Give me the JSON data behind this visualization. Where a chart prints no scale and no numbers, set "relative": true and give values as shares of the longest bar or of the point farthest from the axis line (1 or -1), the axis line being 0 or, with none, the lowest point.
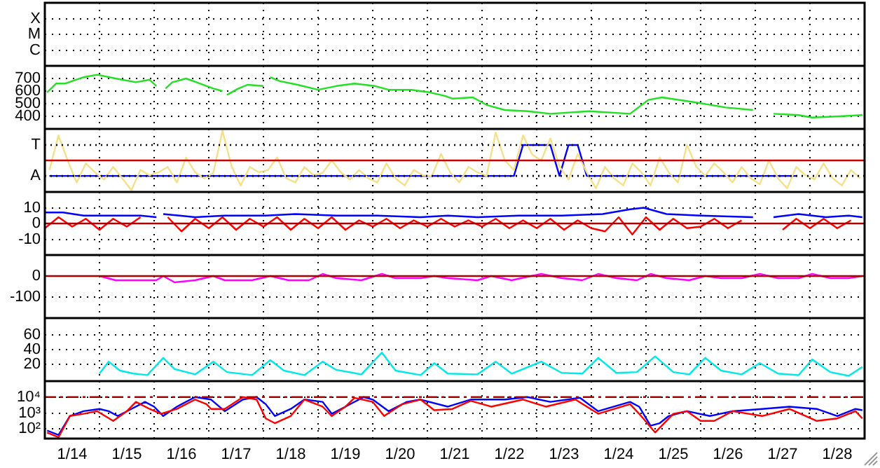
{
  "chart_data": [
    {
      "type": "other",
      "y_categories": [
        "X",
        "M",
        "C"
      ]
    },
    {
      "type": "line",
      "xlim": [
        "--01-14",
        "--01-29"
      ],
      "ylim": [
        300,
        800
      ],
      "yticks": [
        400,
        500,
        600,
        700
      ],
      "grid": true,
      "tick_labels": "y",
      "xticks": [
        {
          "value": "--01-15",
          "label": null
        },
        {
          "value": "--01-16",
          "label": null
        },
        {
          "value": "--01-17",
          "label": null
        },
        {
          "value": "--01-18",
          "label": null
        },
        {
          "value": "--01-19",
          "label": null
        },
        {
          "value": "--01-20",
          "label": null
        },
        {
          "value": "--01-21",
          "label": null
        },
        {
          "value": "--01-22",
          "label": null
        },
        {
          "value": "--01-23",
          "label": null
        },
        {
          "value": "--01-24",
          "label": null
        },
        {
          "value": "--01-25",
          "label": null
        },
        {
          "value": "--01-26",
          "label": null
        },
        {
          "value": "--01-27",
          "label": null
        },
        {
          "value": "--01-28",
          "label": null
        }
      ],
      "series": [
        {
          "color": "#22e022",
          "x": [
            "--01-14T01:00",
            "--01-14T05:00",
            "--01-14T09:00",
            "--01-14T17:00",
            "--01-14T23:00",
            "--01-15T07:00",
            "--01-15T16:00",
            "--01-15T22:00",
            "--01-16T01:00",
            "--01-16T03:00",
            "--01-16T05:00",
            "--01-16T08:00",
            "--01-16T14:00",
            "--01-16T20:00",
            "--01-17T02:00",
            "--01-17T06:00",
            "--01-17T07:00",
            "--01-17T08:00",
            "--01-17T13:00",
            "--01-17T17:00",
            "--01-18T00:00",
            "--01-18T01:00",
            "--01-18T03:00",
            "--01-18T07:00",
            "--01-18T15:00",
            "--01-19T00:00",
            "--01-19T08:00",
            "--01-19T16:00",
            "--01-20T01:00",
            "--01-20T07:00",
            "--01-20T17:00",
            "--01-21T01:00",
            "--01-21T08:00",
            "--01-21T11:00",
            "--01-21T20:00",
            "--01-22T02:00",
            "--01-22T10:00",
            "--01-22T20:00",
            "--01-23T06:00",
            "--01-23T23:00",
            "--01-24T17:00",
            "--01-25T01:00",
            "--01-25T07:00",
            "--01-25T22:00",
            "--01-26T11:00",
            "--01-26T23:00",
            "--01-27T03:00",
            "--01-27T08:00",
            "--01-27T19:00",
            "--01-28T01:00",
            "--01-28T13:00",
            "--01-28T23:00"
          ],
          "values": [
            590,
            660,
            660,
            710,
            730,
            700,
            670,
            690,
            640,
            null,
            620,
            670,
            700,
            660,
            620,
            600,
            null,
            570,
            620,
            650,
            640,
            null,
            710,
            680,
            650,
            610,
            640,
            660,
            640,
            610,
            610,
            590,
            560,
            540,
            550,
            490,
            450,
            440,
            420,
            440,
            420,
            530,
            550,
            510,
            470,
            450,
            null,
            420,
            410,
            390,
            400,
            410
          ]
        }
      ]
    },
    {
      "type": "line",
      "relative": true,
      "tick_labels": false,
      "ref_lines": [
        {
          "axis": "y",
          "value": 0.76,
          "label": "T",
          "color": "#000000",
          "line_style": "dotted"
        },
        {
          "axis": "y",
          "value": 0.24,
          "label": "A",
          "color": "#000000",
          "line_style": "dotted"
        },
        {
          "axis": "y",
          "value": 0.5,
          "color": "#cc0000"
        }
      ],
      "categories": [
        null,
        null,
        null,
        null,
        null,
        null,
        null,
        null,
        null,
        null,
        null,
        null,
        null,
        null,
        null,
        null,
        null,
        null,
        null,
        null,
        null,
        null,
        null,
        null,
        null,
        null,
        null,
        null,
        null,
        null,
        null,
        null,
        null,
        null,
        null,
        null,
        null,
        null,
        null,
        null,
        null,
        null,
        null,
        null,
        null,
        null,
        null,
        null,
        null,
        null,
        null,
        null,
        null,
        null,
        null,
        null,
        null,
        null,
        null,
        null,
        null,
        null,
        null,
        null,
        null,
        null,
        null,
        null,
        null,
        null,
        null,
        null,
        null,
        null,
        null,
        null,
        null,
        null,
        null,
        null,
        null,
        null,
        null,
        null,
        null,
        null,
        null,
        null,
        null,
        null
      ],
      "series": [
        {
          "color": "#f5e08a",
          "values": [
            0.34,
            0.92,
            0.5,
            0.13,
            0.45,
            0.3,
            0.18,
            0.39,
            0.2,
            0,
            0.34,
            0.25,
            0.3,
            0.39,
            0.13,
            0.55,
            0.3,
            0.2,
            0.29,
            1,
            0.4,
            0.08,
            0.39,
            0.3,
            0.34,
            0.55,
            0.2,
            0.13,
            0.39,
            0.25,
            0.29,
            0.5,
            0.3,
            0.18,
            0.34,
            0.2,
            0.13,
            0.45,
            0.2,
            0.08,
            0.34,
            0.25,
            0.24,
            0.61,
            0.3,
            0.13,
            0.39,
            0.3,
            0.24,
            0.97,
            0.5,
            0.34,
            0.92,
            0.6,
            0.5,
            0.87,
            0.4,
            0.18,
            0.61,
            0.3,
            0.03,
            0.39,
            0.2,
            0.08,
            0.45,
            0.3,
            0.08,
            0.55,
            0.3,
            0.13,
            0.76,
            0.4,
            0.24,
            0.45,
            0.3,
            0.13,
            0.39,
            0.2,
            0.1,
            0.5,
            0.2,
            0.03,
            0.39,
            0.25,
            0.18,
            0.45,
            0.2,
            0.08,
            0.34,
            0.2
          ]
        },
        {
          "color": "#0000ff",
          "values": [
            0.24,
            0.24,
            0.24,
            0.24,
            0.24,
            0.24,
            0.24,
            0.24,
            0.24,
            0.24,
            0.24,
            0.24,
            0.24,
            0.24,
            0.24,
            0.24,
            0.24,
            0.24,
            0.24,
            0.24,
            0.24,
            0.24,
            0.24,
            0.24,
            0.24,
            0.24,
            0.24,
            0.24,
            0.24,
            0.24,
            0.24,
            0.24,
            0.24,
            0.24,
            0.24,
            0.24,
            0.24,
            0.24,
            0.24,
            0.24,
            0.24,
            0.24,
            0.24,
            0.24,
            0.24,
            0.24,
            0.24,
            0.24,
            0.24,
            0.24,
            0.24,
            0.24,
            0.76,
            0.76,
            0.76,
            0.76,
            0.24,
            0.76,
            0.76,
            0.24,
            0.24,
            0.24,
            0.24,
            0.24,
            0.24,
            0.24,
            0.24,
            0.24,
            0.24,
            0.24,
            0.24,
            0.24,
            0.24,
            0.24,
            0.24,
            0.24,
            0.24,
            0.24,
            0.24,
            0.24,
            0.24,
            0.24,
            0.24,
            null,
            null,
            null,
            null,
            null,
            null,
            null
          ]
        }
      ]
    },
    {
      "type": "line",
      "xlim": [
        "--01-14",
        "--01-29"
      ],
      "ylim": [
        -20,
        20
      ],
      "yticks": [
        -10,
        0,
        10
      ],
      "grid": true,
      "tick_labels": "y",
      "ref_lines": [
        {
          "axis": "y",
          "value": 0,
          "color": "#aa0000"
        }
      ],
      "xticks": [
        {
          "value": "--01-15",
          "label": null
        },
        {
          "value": "--01-16",
          "label": null
        },
        {
          "value": "--01-17",
          "label": null
        },
        {
          "value": "--01-18",
          "label": null
        },
        {
          "value": "--01-19",
          "label": null
        },
        {
          "value": "--01-20",
          "label": null
        },
        {
          "value": "--01-21",
          "label": null
        },
        {
          "value": "--01-22",
          "label": null
        },
        {
          "value": "--01-23",
          "label": null
        },
        {
          "value": "--01-24",
          "label": null
        },
        {
          "value": "--01-25",
          "label": null
        },
        {
          "value": "--01-26",
          "label": null
        },
        {
          "value": "--01-27",
          "label": null
        },
        {
          "value": "--01-28",
          "label": null
        }
      ],
      "series": [
        {
          "color": "#0000ff",
          "x": [
            "--01-14T00:00",
            "--01-14T08:00",
            "--01-14T17:00",
            "--01-15T18:00",
            "--01-16T01:00",
            "--01-16T02:00",
            "--01-16T04:00",
            "--01-16T18:00",
            "--01-17T07:00",
            "--01-18T01:00",
            "--01-18T14:00",
            "--01-19T08:00",
            "--01-20T02:00",
            "--01-20T21:00",
            "--01-21T09:00",
            "--01-21T22:00",
            "--01-22T16:00",
            "--01-23T11:00",
            "--01-24T05:00",
            "--01-24T17:00",
            "--01-24T23:00",
            "--01-25T09:00",
            "--01-26T00:00",
            "--01-26T23:00",
            "--01-27T03:00",
            "--01-27T08:00",
            "--01-27T19:00",
            "--01-28T07:00",
            "--01-28T17:00",
            "--01-28T23:00"
          ],
          "values": [
            7,
            7,
            5,
            5,
            4,
            null,
            6,
            4,
            5,
            5,
            6,
            5,
            5,
            4,
            5,
            4,
            5,
            5,
            6,
            9,
            10,
            6,
            5,
            4,
            null,
            4,
            6,
            4,
            5,
            4
          ]
        },
        {
          "color": "#ff0000",
          "x": [
            "--01-14T00:00",
            "--01-14T06:00",
            "--01-14T12:00",
            "--01-14T18:00",
            "--01-15T00:00",
            "--01-15T06:00",
            "--01-15T12:00",
            "--01-15T18:00",
            "--01-16T00:00",
            "--01-16T06:00",
            "--01-16T12:00",
            "--01-16T18:00",
            "--01-17T00:00",
            "--01-17T06:00",
            "--01-17T12:00",
            "--01-17T18:00",
            "--01-18T00:00",
            "--01-18T06:00",
            "--01-18T12:00",
            "--01-18T18:00",
            "--01-19T00:00",
            "--01-19T06:00",
            "--01-19T12:00",
            "--01-19T18:00",
            "--01-20T00:00",
            "--01-20T06:00",
            "--01-20T12:00",
            "--01-20T18:00",
            "--01-21T00:00",
            "--01-21T06:00",
            "--01-21T12:00",
            "--01-21T18:00",
            "--01-22T00:00",
            "--01-22T06:00",
            "--01-22T12:00",
            "--01-22T18:00",
            "--01-23T00:00",
            "--01-23T06:00",
            "--01-23T12:00",
            "--01-23T18:00",
            "--01-24T00:00",
            "--01-24T06:00",
            "--01-24T12:00",
            "--01-24T18:00",
            "--01-25T00:00",
            "--01-25T06:00",
            "--01-25T12:00",
            "--01-25T18:00",
            "--01-26T00:00",
            "--01-26T06:00",
            "--01-26T12:00",
            "--01-26T18:00",
            "--01-27T00:00",
            "--01-27T06:00",
            "--01-27T12:00",
            "--01-27T18:00",
            "--01-28T00:00",
            "--01-28T06:00",
            "--01-28T12:00",
            "--01-28T18:00"
          ],
          "values": [
            -3,
            4,
            -2,
            3,
            -4,
            3,
            -2,
            4,
            null,
            4,
            -5,
            3,
            -3,
            4,
            -4,
            3,
            -2,
            4,
            -4,
            3,
            -3,
            4,
            -4,
            2,
            -2,
            3,
            -3,
            2,
            -2,
            3,
            -2,
            2,
            -2,
            3,
            -3,
            2,
            -3,
            3,
            -4,
            2,
            -3,
            -5,
            4,
            -7,
            4,
            -4,
            3,
            -3,
            -2,
            3,
            -3,
            2,
            null,
            null,
            -4,
            3,
            -3,
            3,
            -3,
            2
          ]
        }
      ]
    },
    {
      "type": "line",
      "xlim": [
        "--01-14",
        "--01-29"
      ],
      "ylim": [
        -200,
        100
      ],
      "yticks": [
        -100,
        0
      ],
      "grid": true,
      "tick_labels": "y",
      "ref_lines": [
        {
          "axis": "y",
          "value": 0,
          "color": "#aa0000"
        }
      ],
      "xticks": [
        {
          "value": "--01-15",
          "label": null
        },
        {
          "value": "--01-16",
          "label": null
        },
        {
          "value": "--01-17",
          "label": null
        },
        {
          "value": "--01-18",
          "label": null
        },
        {
          "value": "--01-19",
          "label": null
        },
        {
          "value": "--01-20",
          "label": null
        },
        {
          "value": "--01-21",
          "label": null
        },
        {
          "value": "--01-22",
          "label": null
        },
        {
          "value": "--01-23",
          "label": null
        },
        {
          "value": "--01-24",
          "label": null
        },
        {
          "value": "--01-25",
          "label": null
        },
        {
          "value": "--01-26",
          "label": null
        },
        {
          "value": "--01-27",
          "label": null
        },
        {
          "value": "--01-28",
          "label": null
        }
      ],
      "series": [
        {
          "color": "#ff00ff",
          "x": [
            "--01-15T00:00",
            "--01-15T07:00",
            "--01-15T15:00",
            "--01-16T01:00",
            "--01-16T04:00",
            "--01-16T09:00",
            "--01-16T18:00",
            "--01-17T02:00",
            "--01-17T07:00",
            "--01-17T19:00",
            "--01-18T03:00",
            "--01-18T11:00",
            "--01-18T20:00",
            "--01-19T02:00",
            "--01-19T08:00",
            "--01-19T19:00",
            "--01-20T04:00",
            "--01-20T10:00",
            "--01-20T21:00",
            "--01-21T03:00",
            "--01-21T09:00",
            "--01-21T22:00",
            "--01-22T04:00",
            "--01-22T13:00",
            "--01-23T02:00",
            "--01-23T11:00",
            "--01-23T20:00",
            "--01-24T03:00",
            "--01-24T11:00",
            "--01-24T20:00",
            "--01-25T02:00",
            "--01-25T09:00",
            "--01-25T19:00",
            "--01-26T02:00",
            "--01-26T09:00",
            "--01-26T18:00",
            "--01-27T02:00",
            "--01-27T10:00",
            "--01-27T19:00",
            "--01-28T01:00",
            "--01-28T09:00",
            "--01-28T17:00",
            "--01-28T23:00"
          ],
          "values": [
            0,
            -20,
            -20,
            -20,
            0,
            -30,
            -20,
            0,
            -20,
            -20,
            0,
            -20,
            -20,
            10,
            -10,
            -20,
            10,
            -10,
            -10,
            0,
            -10,
            -20,
            0,
            -20,
            10,
            -10,
            -20,
            10,
            -10,
            -20,
            10,
            -10,
            -20,
            0,
            -10,
            -10,
            10,
            -10,
            -10,
            10,
            -10,
            -10,
            0
          ]
        }
      ]
    },
    {
      "type": "line",
      "xlim": [
        "--01-14",
        "--01-29"
      ],
      "ylim": [
        -2,
        82
      ],
      "yticks": [
        20,
        40,
        60
      ],
      "grid": true,
      "tick_labels": "y",
      "xticks": [
        {
          "value": "--01-15",
          "label": null
        },
        {
          "value": "--01-16",
          "label": null
        },
        {
          "value": "--01-17",
          "label": null
        },
        {
          "value": "--01-18",
          "label": null
        },
        {
          "value": "--01-19",
          "label": null
        },
        {
          "value": "--01-20",
          "label": null
        },
        {
          "value": "--01-21",
          "label": null
        },
        {
          "value": "--01-22",
          "label": null
        },
        {
          "value": "--01-23",
          "label": null
        },
        {
          "value": "--01-24",
          "label": null
        },
        {
          "value": "--01-25",
          "label": null
        },
        {
          "value": "--01-26",
          "label": null
        },
        {
          "value": "--01-27",
          "label": null
        },
        {
          "value": "--01-28",
          "label": null
        }
      ],
      "series": [
        {
          "color": "#00e8e8",
          "x": [
            "--01-15T00:00",
            "--01-15T04:00",
            "--01-15T09:00",
            "--01-15T15:00",
            "--01-15T21:00",
            "--01-16T04:00",
            "--01-16T09:00",
            "--01-16T18:00",
            "--01-17T02:00",
            "--01-17T08:00",
            "--01-17T19:00",
            "--01-18T03:00",
            "--01-18T09:00",
            "--01-18T18:00",
            "--01-19T02:00",
            "--01-19T08:00",
            "--01-19T19:00",
            "--01-20T04:00",
            "--01-20T10:00",
            "--01-20T21:00",
            "--01-21T03:00",
            "--01-21T09:00",
            "--01-21T22:00",
            "--01-22T06:00",
            "--01-22T13:00",
            "--01-23T02:00",
            "--01-23T11:00",
            "--01-23T20:00",
            "--01-24T03:00",
            "--01-24T11:00",
            "--01-24T20:00",
            "--01-25T04:00",
            "--01-25T12:00",
            "--01-25T19:00",
            "--01-26T02:00",
            "--01-26T09:00",
            "--01-26T18:00",
            "--01-27T02:00",
            "--01-27T10:00",
            "--01-27T19:00",
            "--01-28T01:00",
            "--01-28T09:00",
            "--01-28T17:00",
            "--01-28T23:00"
          ],
          "values": [
            8,
            24,
            12,
            8,
            6,
            29,
            14,
            7,
            24,
            10,
            6,
            26,
            12,
            6,
            24,
            13,
            7,
            36,
            12,
            6,
            22,
            8,
            7,
            24,
            8,
            24,
            9,
            8,
            29,
            9,
            10,
            31,
            10,
            7,
            29,
            12,
            7,
            22,
            8,
            6,
            27,
            10,
            5,
            17
          ]
        }
      ]
    },
    {
      "type": "line",
      "log": true,
      "xlim": [
        "--01-14",
        "--01-29"
      ],
      "ylim": [
        25,
        100000
      ],
      "yticks": [
        {
          "value": 100,
          "label": "10²"
        },
        {
          "value": 1000,
          "label": "10³"
        },
        {
          "value": 10000,
          "label": "10⁴"
        }
      ],
      "grid": true,
      "ref_lines": [
        {
          "axis": "y",
          "value": 10000,
          "color": "#aa0000",
          "line_style": "dashed"
        }
      ],
      "xticks": [
        {
          "value": "--01-14T12:00",
          "label": "1/14"
        },
        {
          "value": "--01-15",
          "label": null
        },
        {
          "value": "--01-15T12:00",
          "label": "1/15"
        },
        {
          "value": "--01-16",
          "label": null
        },
        {
          "value": "--01-16T12:00",
          "label": "1/16"
        },
        {
          "value": "--01-17",
          "label": null
        },
        {
          "value": "--01-17T12:00",
          "label": "1/17"
        },
        {
          "value": "--01-18",
          "label": null
        },
        {
          "value": "--01-18T12:00",
          "label": "1/18"
        },
        {
          "value": "--01-19",
          "label": null
        },
        {
          "value": "--01-19T12:00",
          "label": "1/19"
        },
        {
          "value": "--01-20",
          "label": null
        },
        {
          "value": "--01-20T12:00",
          "label": "1/20"
        },
        {
          "value": "--01-21",
          "label": null
        },
        {
          "value": "--01-21T12:00",
          "label": "1/21"
        },
        {
          "value": "--01-22",
          "label": null
        },
        {
          "value": "--01-22T12:00",
          "label": "1/22"
        },
        {
          "value": "--01-23",
          "label": null
        },
        {
          "value": "--01-23T12:00",
          "label": "1/23"
        },
        {
          "value": "--01-24",
          "label": null
        },
        {
          "value": "--01-24T12:00",
          "label": "1/24"
        },
        {
          "value": "--01-25",
          "label": null
        },
        {
          "value": "--01-25T12:00",
          "label": "1/25"
        },
        {
          "value": "--01-26",
          "label": null
        },
        {
          "value": "--01-26T12:00",
          "label": "1/26"
        },
        {
          "value": "--01-27",
          "label": null
        },
        {
          "value": "--01-27T12:00",
          "label": "1/27"
        },
        {
          "value": "--01-28",
          "label": null
        },
        {
          "value": "--01-28T12:00",
          "label": "1/28"
        }
      ],
      "series": [
        {
          "color": "#ff0000",
          "x": [
            "--01-14T01:00",
            "--01-14T06:00",
            "--01-14T11:00",
            "--01-14T17:00",
            "--01-14T23:00",
            "--01-15T06:00",
            "--01-15T12:00",
            "--01-15T16:00",
            "--01-15T22:00",
            "--01-16T03:00",
            "--01-16T10:00",
            "--01-16T18:00",
            "--01-16T23:00",
            "--01-17T01:00",
            "--01-17T07:00",
            "--01-17T15:00",
            "--01-17T21:00",
            "--01-18T01:00",
            "--01-18T05:00",
            "--01-18T12:00",
            "--01-18T18:00",
            "--01-19T02:00",
            "--01-19T06:00",
            "--01-19T12:00",
            "--01-19T16:00",
            "--01-20T00:00",
            "--01-20T05:00",
            "--01-20T13:00",
            "--01-20T21:00",
            "--01-21T03:00",
            "--01-21T11:00",
            "--01-21T19:00",
            "--01-22T04:00",
            "--01-22T18:00",
            "--01-23T04:00",
            "--01-23T17:00",
            "--01-24T03:00",
            "--01-24T17:00",
            "--01-24T21:00",
            "--01-25T04:00",
            "--01-25T12:00",
            "--01-25T18:00",
            "--01-26T00:00",
            "--01-26T06:00",
            "--01-26T14:00",
            "--01-27T03:00",
            "--01-27T15:00",
            "--01-28T03:00",
            "--01-28T12:00",
            "--01-28T20:00",
            "--01-28T23:00"
          ],
          "values": [
            60,
            30,
            650,
            900,
            1300,
            320,
            1300,
            5000,
            1800,
            900,
            1800,
            7000,
            3600,
            1800,
            1800,
            10000,
            7000,
            460,
            230,
            650,
            7000,
            2500,
            650,
            2500,
            9000,
            5000,
            650,
            3600,
            7000,
            1500,
            1800,
            5800,
            2500,
            7000,
            2500,
            7000,
            900,
            3600,
            900,
            60,
            900,
            1300,
            320,
            320,
            1300,
            650,
            1800,
            320,
            460,
            1300,
            460
          ]
        },
        {
          "color": "#0000ff",
          "x": [
            "--01-14T01:00",
            "--01-14T06:00",
            "--01-14T11:00",
            "--01-14T17:00",
            "--01-15T00:00",
            "--01-15T04:00",
            "--01-15T08:00",
            "--01-15T14:00",
            "--01-15T20:00",
            "--01-16T00:00",
            "--01-16T04:00",
            "--01-16T10:00",
            "--01-16T18:00",
            "--01-17T01:00",
            "--01-17T07:00",
            "--01-17T15:00",
            "--01-17T21:00",
            "--01-18T01:00",
            "--01-18T05:00",
            "--01-18T12:00",
            "--01-18T18:00",
            "--01-19T02:00",
            "--01-19T06:00",
            "--01-19T12:00",
            "--01-19T20:00",
            "--01-20T00:00",
            "--01-20T07:00",
            "--01-20T15:00",
            "--01-20T21:00",
            "--01-21T09:00",
            "--01-21T19:00",
            "--01-22T10:00",
            "--01-22T20:00",
            "--01-23T06:00",
            "--01-23T19:00",
            "--01-24T03:00",
            "--01-24T17:00",
            "--01-24T21:00",
            "--01-25T02:00",
            "--01-25T06:00",
            "--01-25T10:00",
            "--01-25T18:00",
            "--01-26T04:00",
            "--01-26T14:00",
            "--01-27T03:00",
            "--01-27T15:00",
            "--01-28T03:00",
            "--01-28T12:00",
            "--01-28T20:00",
            "--01-28T23:00"
          ],
          "values": [
            80,
            42,
            650,
            1300,
            1800,
            1300,
            650,
            1800,
            5000,
            2500,
            650,
            2500,
            10000,
            7000,
            1300,
            7000,
            10000,
            3600,
            650,
            1800,
            7000,
            5000,
            900,
            2500,
            10000,
            7000,
            1300,
            5000,
            7000,
            2500,
            7000,
            7000,
            10000,
            5000,
            9000,
            1300,
            5000,
            2500,
            160,
            230,
            650,
            1300,
            650,
            1300,
            1800,
            2500,
            1800,
            650,
            1800,
            1500
          ]
        }
      ]
    }
  ]
}
